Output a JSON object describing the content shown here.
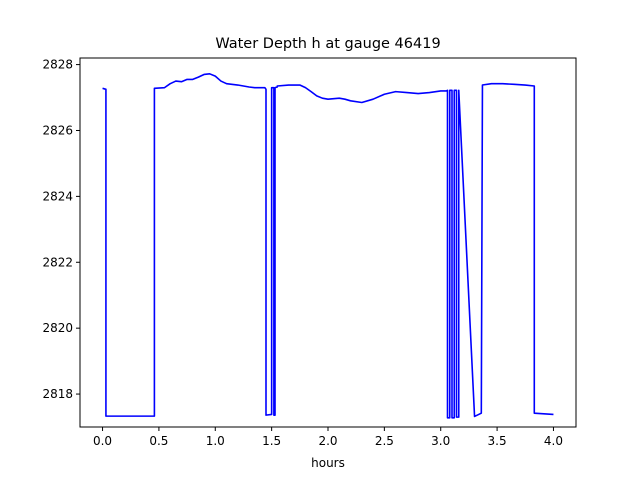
{
  "chart_data": {
    "type": "line",
    "title": "Water Depth h at gauge 46419",
    "xlabel": "hours",
    "ylabel": "",
    "xlim": [
      -0.2,
      4.2
    ],
    "ylim": [
      2817.0,
      2828.2
    ],
    "xticks": [
      0.0,
      0.5,
      1.0,
      1.5,
      2.0,
      2.5,
      3.0,
      3.5,
      4.0
    ],
    "xtick_labels": [
      "0.0",
      "0.5",
      "1.0",
      "1.5",
      "2.0",
      "2.5",
      "3.0",
      "3.5",
      "4.0"
    ],
    "yticks": [
      2818,
      2820,
      2822,
      2824,
      2826,
      2828
    ],
    "ytick_labels": [
      "2818",
      "2820",
      "2822",
      "2824",
      "2826",
      "2828"
    ],
    "grid": false,
    "series": [
      {
        "color": "#0000ff",
        "x": [
          0.0,
          0.03,
          0.03,
          0.46,
          0.46,
          0.55,
          0.6,
          0.65,
          0.7,
          0.75,
          0.8,
          0.85,
          0.9,
          0.95,
          1.0,
          1.05,
          1.1,
          1.2,
          1.3,
          1.35,
          1.44,
          1.45,
          1.45,
          1.5,
          1.5,
          1.52,
          1.52,
          1.53,
          1.53,
          1.55,
          1.55,
          1.65,
          1.75,
          1.8,
          1.85,
          1.9,
          1.95,
          2.0,
          2.1,
          2.15,
          2.2,
          2.3,
          2.4,
          2.5,
          2.6,
          2.7,
          2.8,
          2.9,
          3.0,
          3.05,
          3.06,
          3.06,
          3.08,
          3.08,
          3.1,
          3.1,
          3.12,
          3.12,
          3.14,
          3.14,
          3.16,
          3.16,
          3.3,
          3.36,
          3.37,
          3.45,
          3.55,
          3.65,
          3.75,
          3.83,
          3.83,
          4.0
        ],
        "y": [
          2827.28,
          2827.25,
          2817.33,
          2817.33,
          2827.28,
          2827.3,
          2827.42,
          2827.5,
          2827.48,
          2827.55,
          2827.55,
          2827.62,
          2827.7,
          2827.72,
          2827.65,
          2827.5,
          2827.42,
          2827.38,
          2827.32,
          2827.3,
          2827.3,
          2827.25,
          2817.36,
          2817.38,
          2827.3,
          2827.3,
          2817.36,
          2817.36,
          2827.3,
          2827.32,
          2827.35,
          2827.38,
          2827.38,
          2827.3,
          2827.18,
          2827.05,
          2826.98,
          2826.95,
          2826.98,
          2826.95,
          2826.9,
          2826.85,
          2826.95,
          2827.1,
          2827.18,
          2827.15,
          2827.12,
          2827.15,
          2827.2,
          2827.2,
          2827.22,
          2817.28,
          2817.28,
          2827.22,
          2827.22,
          2817.28,
          2817.28,
          2827.22,
          2827.22,
          2817.3,
          2817.3,
          2827.22,
          2817.32,
          2817.42,
          2827.38,
          2827.42,
          2827.42,
          2827.4,
          2827.38,
          2827.35,
          2817.42,
          2817.38
        ]
      }
    ]
  }
}
